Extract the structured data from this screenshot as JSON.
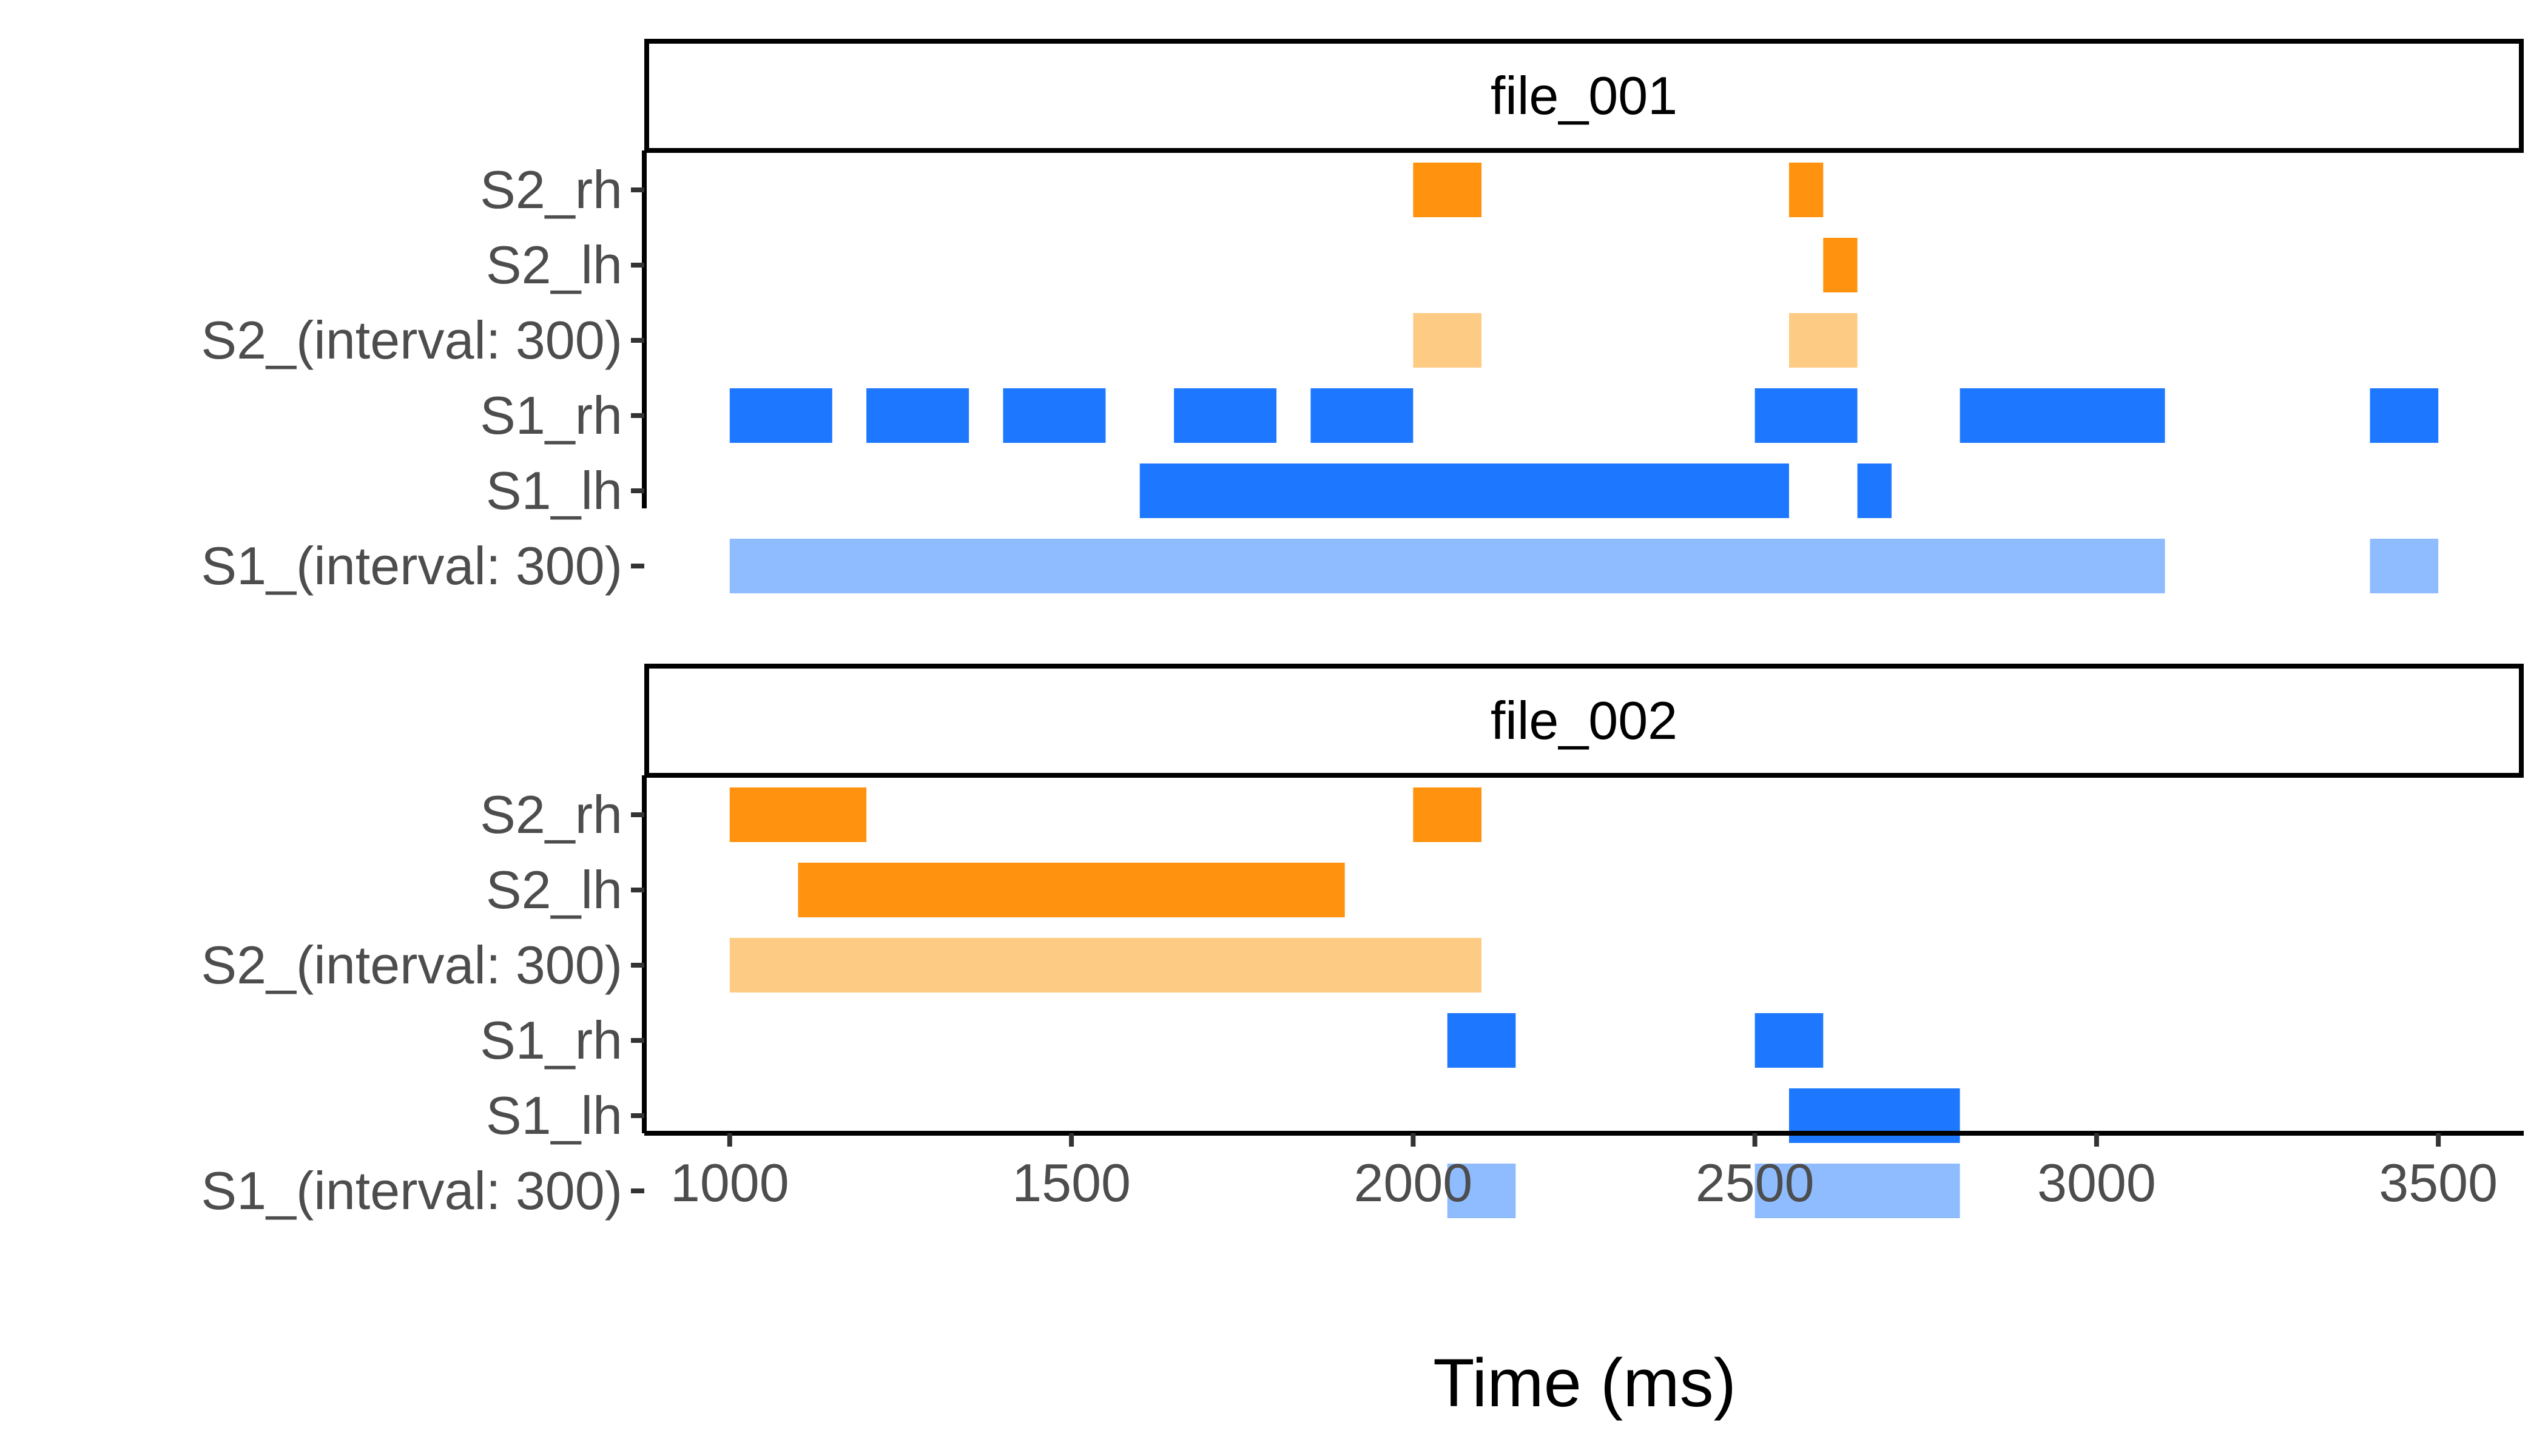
{
  "chart_data": {
    "type": "timeline",
    "xlabel": "Time (ms)",
    "xlim": [
      875,
      3625
    ],
    "x_ticks": [
      1000,
      1500,
      2000,
      2500,
      3000,
      3500
    ],
    "rows": [
      "S2_rh",
      "S2_lh",
      "S2_(interval: 300)",
      "S1_rh",
      "S1_lh",
      "S1_(interval: 300)"
    ],
    "colors": {
      "S2": "#FF920E",
      "S2_interval": "#FECB84",
      "S1": "#1E78FF",
      "S1_interval": "#8EBCFF"
    },
    "facets": [
      {
        "title": "file_001",
        "bars": [
          {
            "row": "S2_rh",
            "start": 2000,
            "end": 2100,
            "color": "S2"
          },
          {
            "row": "S2_rh",
            "start": 2550,
            "end": 2600,
            "color": "S2"
          },
          {
            "row": "S2_lh",
            "start": 2600,
            "end": 2650,
            "color": "S2"
          },
          {
            "row": "S2_(interval: 300)",
            "start": 2000,
            "end": 2100,
            "color": "S2_interval"
          },
          {
            "row": "S2_(interval: 300)",
            "start": 2550,
            "end": 2650,
            "color": "S2_interval"
          },
          {
            "row": "S1_rh",
            "start": 1000,
            "end": 1150,
            "color": "S1"
          },
          {
            "row": "S1_rh",
            "start": 1200,
            "end": 1350,
            "color": "S1"
          },
          {
            "row": "S1_rh",
            "start": 1400,
            "end": 1550,
            "color": "S1"
          },
          {
            "row": "S1_rh",
            "start": 1650,
            "end": 1800,
            "color": "S1"
          },
          {
            "row": "S1_rh",
            "start": 1850,
            "end": 2000,
            "color": "S1"
          },
          {
            "row": "S1_rh",
            "start": 2500,
            "end": 2650,
            "color": "S1"
          },
          {
            "row": "S1_rh",
            "start": 2800,
            "end": 3100,
            "color": "S1"
          },
          {
            "row": "S1_rh",
            "start": 3400,
            "end": 3500,
            "color": "S1"
          },
          {
            "row": "S1_lh",
            "start": 1600,
            "end": 2550,
            "color": "S1"
          },
          {
            "row": "S1_lh",
            "start": 2650,
            "end": 2700,
            "color": "S1"
          },
          {
            "row": "S1_(interval: 300)",
            "start": 1000,
            "end": 3100,
            "color": "S1_interval"
          },
          {
            "row": "S1_(interval: 300)",
            "start": 3400,
            "end": 3500,
            "color": "S1_interval"
          }
        ]
      },
      {
        "title": "file_002",
        "bars": [
          {
            "row": "S2_rh",
            "start": 1000,
            "end": 1200,
            "color": "S2"
          },
          {
            "row": "S2_rh",
            "start": 2000,
            "end": 2100,
            "color": "S2"
          },
          {
            "row": "S2_lh",
            "start": 1100,
            "end": 1900,
            "color": "S2"
          },
          {
            "row": "S2_(interval: 300)",
            "start": 1000,
            "end": 2100,
            "color": "S2_interval"
          },
          {
            "row": "S1_rh",
            "start": 2050,
            "end": 2150,
            "color": "S1"
          },
          {
            "row": "S1_rh",
            "start": 2500,
            "end": 2600,
            "color": "S1"
          },
          {
            "row": "S1_lh",
            "start": 2550,
            "end": 2800,
            "color": "S1"
          },
          {
            "row": "S1_(interval: 300)",
            "start": 2050,
            "end": 2150,
            "color": "S1_interval"
          },
          {
            "row": "S1_(interval: 300)",
            "start": 2500,
            "end": 2800,
            "color": "S1_interval"
          }
        ]
      }
    ]
  }
}
